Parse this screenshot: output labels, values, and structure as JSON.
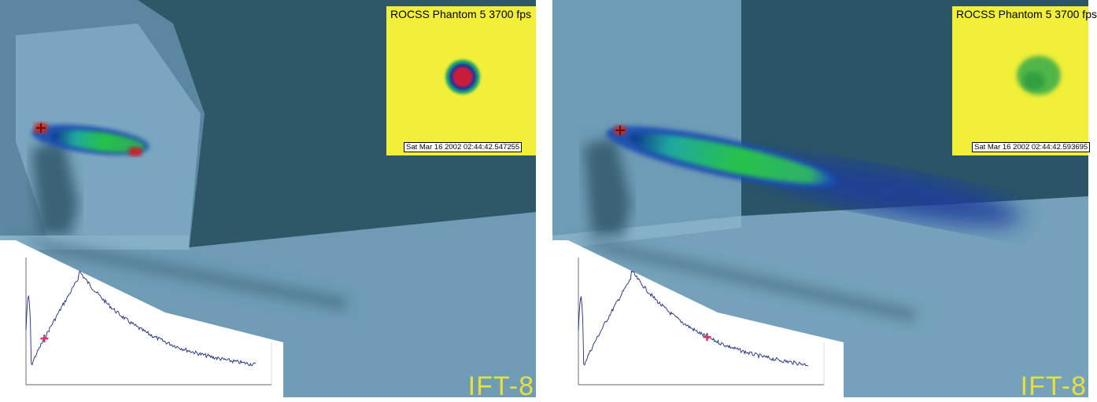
{
  "panels": [
    {
      "inset": {
        "title": "ROCSS Phantom 5  3700 fps",
        "timestamp": "Sat Mar 16 2002  02:44:42.547255",
        "image": "circular-cloud-dense"
      },
      "label": "IFT-8",
      "plume": "short-dense",
      "marker_fraction": 0.08
    },
    {
      "inset": {
        "title": "ROCSS Phantom 5  3700 fps",
        "timestamp": "Sat Mar 16 2002  02:44:42.593695",
        "image": "diffuse-cloud"
      },
      "label": "IFT-8",
      "plume": "long-diffuse",
      "marker_fraction": 0.56
    }
  ],
  "colors": {
    "wall_light": "#6f9db7",
    "wall_dark": "#2f5a6c",
    "floor": "#7aa5bd",
    "inset_bg": "#f2ef3a",
    "label": "#e8e03a",
    "trace": "#1a2a8a",
    "marker": "#d23a6a"
  }
}
